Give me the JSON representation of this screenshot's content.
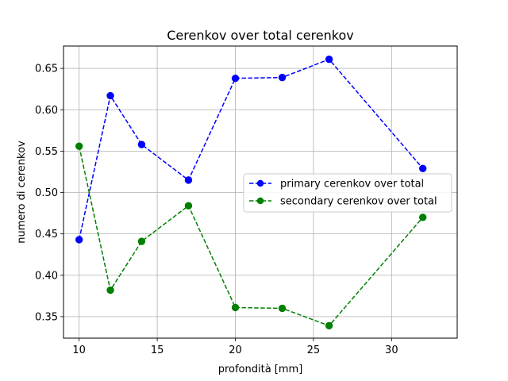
{
  "chart_data": {
    "type": "line",
    "title": "Cerenkov over total cerenkov",
    "xlabel": "profondità [mm]",
    "ylabel": "numero di cerenkov",
    "xlim": [
      9,
      34.2
    ],
    "ylim": [
      0.324,
      0.677
    ],
    "xticks": [
      10,
      15,
      20,
      25,
      30
    ],
    "yticks": [
      0.35,
      0.4,
      0.45,
      0.5,
      0.55,
      0.6,
      0.65
    ],
    "grid": true,
    "legend_position": "center-right",
    "x": [
      10,
      12,
      14,
      17,
      20,
      23,
      26,
      32
    ],
    "series": [
      {
        "name": "primary cerenkov over total",
        "color": "#0000ff",
        "line_style": "dashed",
        "marker": "circle",
        "values": [
          0.443,
          0.617,
          0.558,
          0.515,
          0.638,
          0.639,
          0.661,
          0.529
        ]
      },
      {
        "name": "secondary cerenkov over total",
        "color": "#008000",
        "line_style": "dashed",
        "marker": "circle",
        "values": [
          0.556,
          0.382,
          0.441,
          0.484,
          0.361,
          0.36,
          0.339,
          0.47
        ]
      }
    ]
  }
}
